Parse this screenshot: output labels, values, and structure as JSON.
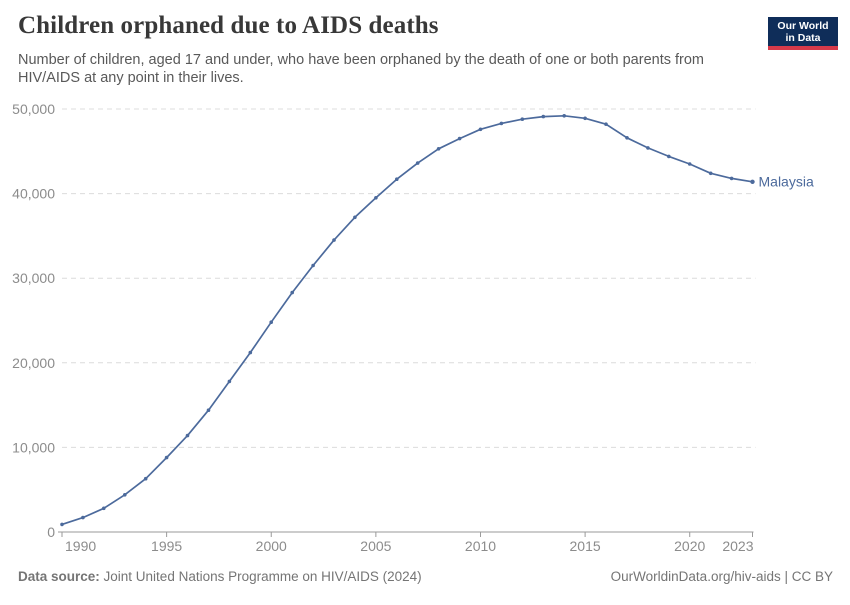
{
  "header": {
    "title": "Children orphaned due to AIDS deaths",
    "subtitle": "Number of children, aged 17 and under, who have been orphaned by the death of one or both parents from HIV/AIDS at any point in their lives.",
    "logo": {
      "line1": "Our World",
      "line2": "in Data",
      "bg_color": "#0f2d59",
      "accent_color": "#d73a4a"
    }
  },
  "chart_data": {
    "type": "line",
    "title": "Children orphaned due to AIDS deaths",
    "xlabel": "",
    "ylabel": "",
    "xlim": [
      1990,
      2023
    ],
    "ylim": [
      0,
      50000
    ],
    "grid": "horizontal-dashed",
    "legend": "line-end-label",
    "x": [
      1990,
      1991,
      1992,
      1993,
      1994,
      1995,
      1996,
      1997,
      1998,
      1999,
      2000,
      2001,
      2002,
      2003,
      2004,
      2005,
      2006,
      2007,
      2008,
      2009,
      2010,
      2011,
      2012,
      2013,
      2014,
      2015,
      2016,
      2017,
      2018,
      2019,
      2020,
      2021,
      2022,
      2023
    ],
    "series": [
      {
        "name": "Malaysia",
        "color": "#4c6a9c",
        "values": [
          900,
          1700,
          2800,
          4400,
          6300,
          8800,
          11400,
          14400,
          17800,
          21200,
          24800,
          28300,
          31500,
          34500,
          37200,
          39500,
          41700,
          43600,
          45300,
          46500,
          47600,
          48300,
          48800,
          49100,
          49200,
          48900,
          48200,
          46600,
          45400,
          44400,
          43500,
          42400,
          41800,
          41400
        ]
      }
    ],
    "xticks": [
      1990,
      1995,
      2000,
      2005,
      2010,
      2015,
      2020,
      2023
    ],
    "yticks": [
      0,
      10000,
      20000,
      30000,
      40000,
      50000
    ],
    "ytick_labels": [
      "0",
      "10,000",
      "20,000",
      "30,000",
      "40,000",
      "50,000"
    ]
  },
  "footer": {
    "source_label": "Data source:",
    "source_text": " Joint United Nations Programme on HIV/AIDS (2024)",
    "link_text": "OurWorldinData.org/hiv-aids | CC BY"
  },
  "colors": {
    "line": "#4c6a9c",
    "grid": "#dcdcdc",
    "axis": "#9a9a9a",
    "tick_text": "#8c8c8c",
    "title_text": "#383838",
    "subtitle_text": "#595959",
    "footer_text": "#757575"
  }
}
